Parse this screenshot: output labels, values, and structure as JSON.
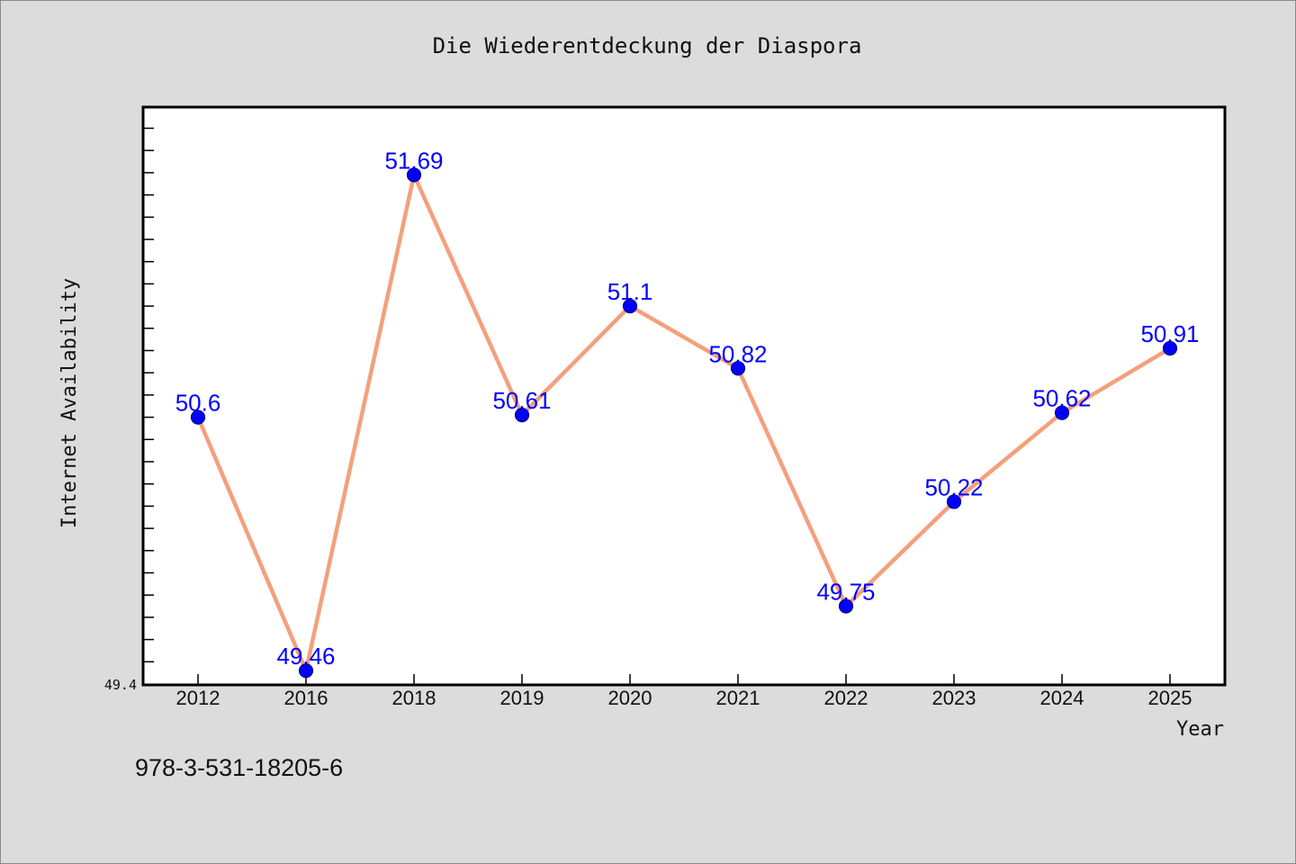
{
  "chart_data": {
    "type": "line",
    "title": "Die Wiederentdeckung der Diaspora",
    "xlabel": "Year",
    "ylabel": "Internet Availability",
    "categories": [
      "2012",
      "2016",
      "2018",
      "2019",
      "2020",
      "2021",
      "2022",
      "2023",
      "2024",
      "2025"
    ],
    "series": [
      {
        "values": [
          50.6,
          49.46,
          51.69,
          50.61,
          51.1,
          50.82,
          49.75,
          50.22,
          50.62,
          50.91
        ],
        "data_labels": [
          "50.6",
          "49.46",
          "51.69",
          "50.61",
          "51.1",
          "50.82",
          "49.75",
          "50.22",
          "50.62",
          "50.91"
        ]
      }
    ],
    "ylim": [
      49.4,
      52.0
    ],
    "ytick_min_label": "49.4",
    "grid": false,
    "legend": "none",
    "line_color": "#f4a07c",
    "marker_color": "#0000ff",
    "label_color": "#0000ff"
  },
  "footer": {
    "isbn": "978-3-531-18205-6"
  }
}
